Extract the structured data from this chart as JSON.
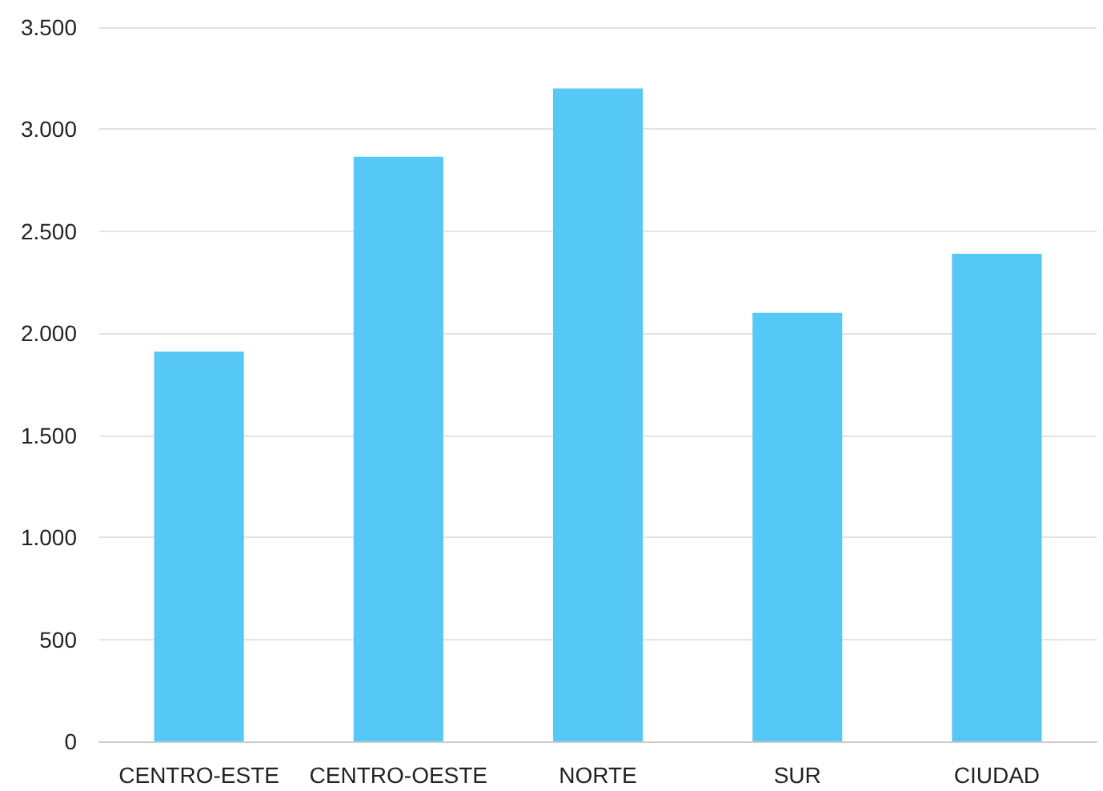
{
  "chart_data": {
    "type": "bar",
    "categories": [
      "CENTRO-ESTE",
      "CENTRO-OESTE",
      "NORTE",
      "SUR",
      "CIUDAD"
    ],
    "values": [
      1910,
      2865,
      3200,
      2100,
      2390
    ],
    "color": "#56c8f5",
    "ylim": [
      0,
      3500
    ],
    "yticks": [
      0,
      500,
      {
        "value": 1000,
        "label": "1.000"
      },
      {
        "value": 1500,
        "label": "1.500"
      },
      {
        "value": 2000,
        "label": "2.000"
      },
      {
        "value": 2500,
        "label": "2.500"
      },
      {
        "value": 3000,
        "label": "3.000"
      },
      {
        "value": 3500,
        "label": "3.500"
      }
    ],
    "grid": "y"
  }
}
